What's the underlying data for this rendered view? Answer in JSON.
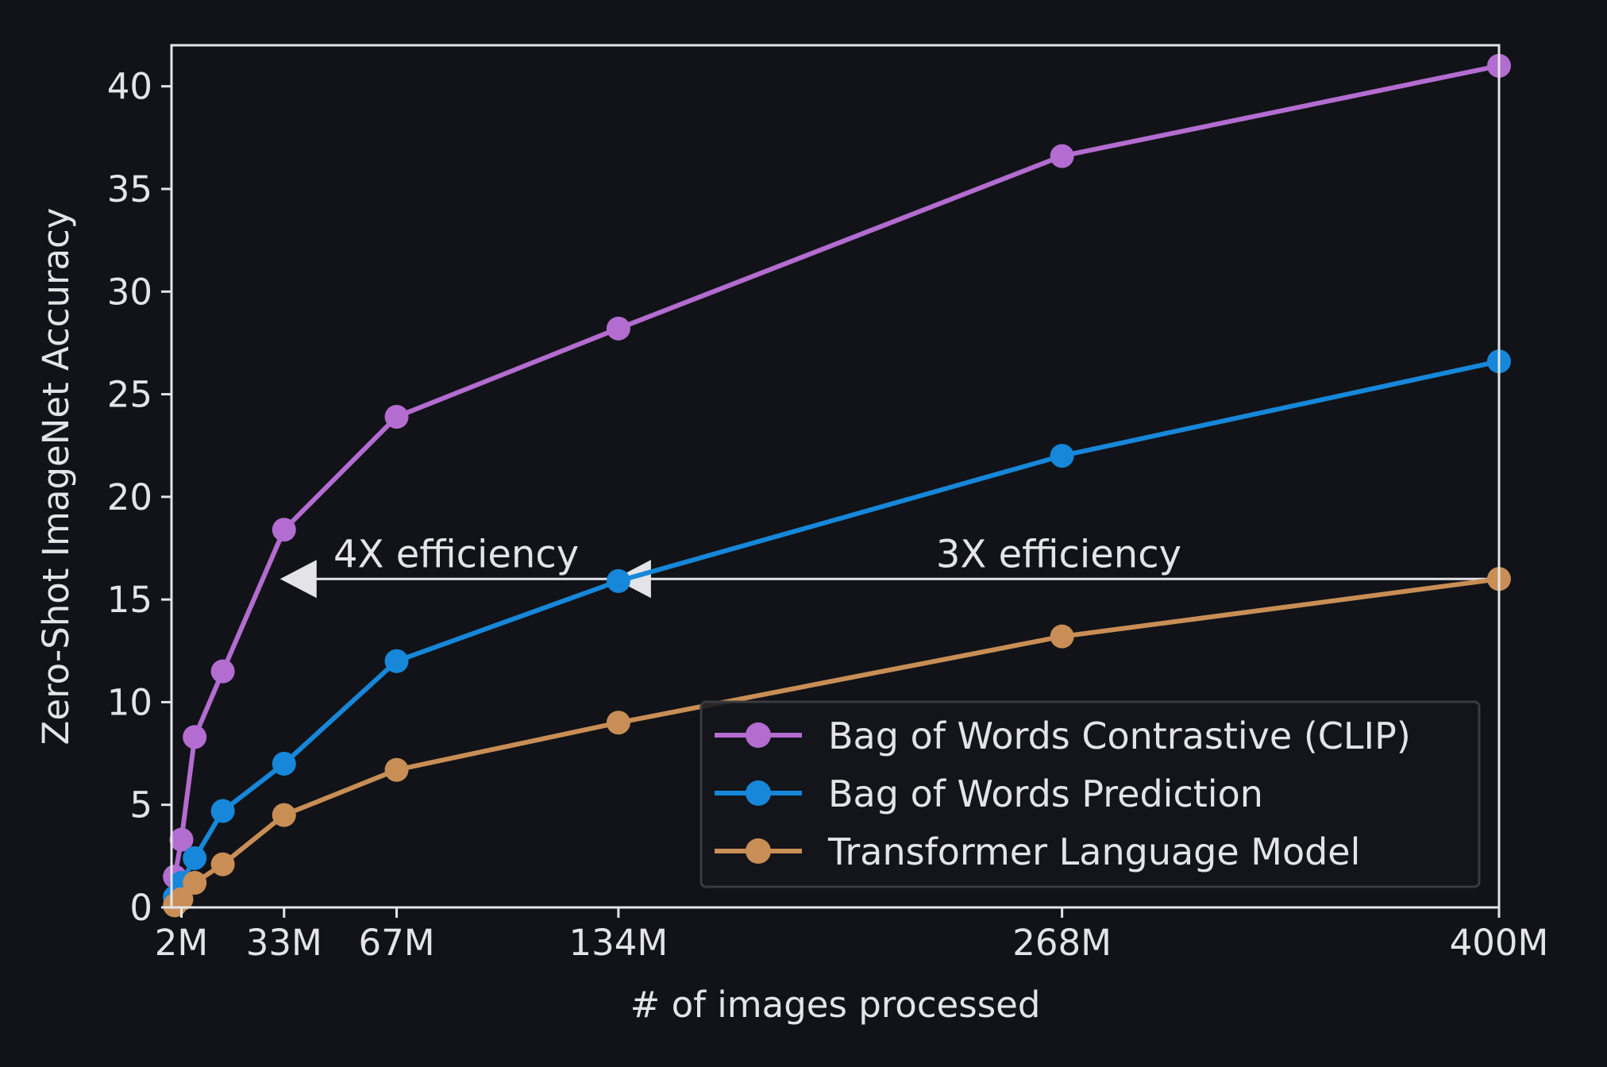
{
  "colors": {
    "background": "#121318",
    "axes": "#e4e4e8",
    "legend_bg": "#15161b",
    "legend_border": "#3a3b40"
  },
  "chart_data": {
    "type": "line",
    "xlabel": "# of images processed",
    "ylabel": "Zero-Shot ImageNet Accuracy",
    "xlim": [
      -1,
      400
    ],
    "ylim": [
      0,
      42
    ],
    "x_ticks": [
      {
        "value": 2,
        "label": "2M"
      },
      {
        "value": 33,
        "label": "33M"
      },
      {
        "value": 67,
        "label": "67M"
      },
      {
        "value": 134,
        "label": "134M"
      },
      {
        "value": 268,
        "label": "268M"
      },
      {
        "value": 400,
        "label": "400M"
      }
    ],
    "y_ticks": [
      0,
      5,
      10,
      15,
      20,
      25,
      30,
      35,
      40
    ],
    "grid": false,
    "legend_position": "bottom-right",
    "series": [
      {
        "name": "Bag of Words Contrastive (CLIP)",
        "color": "#b36cd0",
        "points": [
          [
            0,
            1.5
          ],
          [
            2,
            3.3
          ],
          [
            6,
            8.3
          ],
          [
            14.5,
            11.5
          ],
          [
            33,
            18.4
          ],
          [
            67,
            23.9
          ],
          [
            134,
            28.2
          ],
          [
            268,
            36.6
          ],
          [
            400,
            41.0
          ]
        ]
      },
      {
        "name": "Bag of Words Prediction",
        "color": "#1687d9",
        "points": [
          [
            0,
            0.5
          ],
          [
            2,
            1.2
          ],
          [
            6,
            2.4
          ],
          [
            14.5,
            4.7
          ],
          [
            33,
            7.0
          ],
          [
            67,
            12.0
          ],
          [
            134,
            15.9
          ],
          [
            268,
            22.0
          ],
          [
            400,
            26.6
          ]
        ]
      },
      {
        "name": "Transformer Language Model",
        "color": "#c88e55",
        "points": [
          [
            0,
            0.1
          ],
          [
            2,
            0.4
          ],
          [
            6,
            1.2
          ],
          [
            14.5,
            2.1
          ],
          [
            33,
            4.5
          ],
          [
            67,
            6.7
          ],
          [
            134,
            9.0
          ],
          [
            268,
            13.2
          ],
          [
            400,
            16.0
          ]
        ]
      }
    ],
    "annotations": [
      {
        "text": "4X efficiency",
        "from_x": 134,
        "to_x": 33,
        "y": 16,
        "text_x": 85
      },
      {
        "text": "3X efficiency",
        "from_x": 400,
        "to_x": 134,
        "y": 16,
        "text_x": 267
      }
    ]
  }
}
